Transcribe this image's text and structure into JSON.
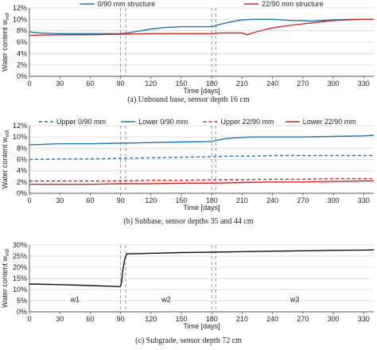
{
  "colors": {
    "blue": "#1f77b4",
    "red": "#d62728",
    "black": "#111111",
    "grid": "#d9d9d9",
    "marker": "#999999"
  },
  "chart_data": [
    {
      "type": "line",
      "caption": "(a) Unbound base, sensor depth 16 cm",
      "xlabel": "Time [days]",
      "ylabel": "Water content w",
      "ylabel_sub": "vol",
      "xlim": [
        0,
        340
      ],
      "ylim": [
        0,
        12
      ],
      "xticks": [
        0,
        30,
        60,
        90,
        120,
        150,
        180,
        210,
        240,
        270,
        300,
        330
      ],
      "yticks": [
        "0%",
        "2%",
        "4%",
        "6%",
        "8%",
        "10%",
        "12%"
      ],
      "ytick_values": [
        0,
        2,
        4,
        6,
        8,
        10,
        12
      ],
      "grid": "horizontal",
      "legend_position": "top",
      "markers": [
        90,
        95,
        180,
        184
      ],
      "annotations": [],
      "series": [
        {
          "name": "0/90 mm structure",
          "color": "blue",
          "dash": "solid",
          "x": [
            0,
            10,
            30,
            60,
            90,
            100,
            110,
            120,
            135,
            150,
            165,
            180,
            190,
            200,
            210,
            220,
            240,
            260,
            280,
            300,
            320,
            340
          ],
          "y": [
            7.8,
            7.6,
            7.5,
            7.5,
            7.5,
            7.7,
            8.0,
            8.3,
            8.6,
            8.7,
            8.7,
            8.7,
            9.2,
            9.6,
            9.9,
            10.0,
            10.0,
            9.8,
            9.7,
            9.9,
            10.0,
            10.0
          ]
        },
        {
          "name": "22/90 mm structure",
          "color": "red",
          "dash": "solid",
          "x": [
            0,
            30,
            60,
            90,
            120,
            150,
            180,
            190,
            200,
            210,
            215,
            220,
            230,
            240,
            255,
            270,
            285,
            300,
            315,
            330,
            340
          ],
          "y": [
            7.2,
            7.3,
            7.3,
            7.4,
            7.5,
            7.5,
            7.5,
            7.6,
            7.6,
            7.6,
            7.3,
            7.6,
            8.1,
            8.5,
            8.9,
            9.2,
            9.5,
            9.8,
            9.9,
            10.0,
            10.0
          ]
        }
      ]
    },
    {
      "type": "line",
      "caption": "(b) Subbase, sensor depths 35 and 44 cm",
      "xlabel": "Time [days]",
      "ylabel": "Water content w",
      "ylabel_sub": "vol",
      "xlim": [
        0,
        340
      ],
      "ylim": [
        0,
        12
      ],
      "xticks": [
        0,
        30,
        60,
        90,
        120,
        150,
        180,
        210,
        240,
        270,
        300,
        330
      ],
      "yticks": [
        "0%",
        "2%",
        "4%",
        "6%",
        "8%",
        "10%",
        "12%"
      ],
      "ytick_values": [
        0,
        2,
        4,
        6,
        8,
        10,
        12
      ],
      "grid": "horizontal",
      "legend_position": "top",
      "markers": [
        90,
        95,
        180,
        184
      ],
      "annotations": [],
      "series": [
        {
          "name": "Upper 0/90 mm",
          "color": "blue",
          "dash": "dashed",
          "x": [
            0,
            30,
            60,
            90,
            120,
            150,
            180,
            200,
            220,
            240,
            270,
            300,
            330,
            340
          ],
          "y": [
            6.0,
            6.1,
            6.1,
            6.2,
            6.3,
            6.4,
            6.5,
            6.6,
            6.6,
            6.7,
            6.7,
            6.7,
            6.7,
            6.7
          ]
        },
        {
          "name": "Lower 0/90 mm",
          "color": "blue",
          "dash": "solid",
          "x": [
            0,
            30,
            60,
            90,
            120,
            150,
            180,
            190,
            200,
            220,
            240,
            270,
            300,
            330,
            340
          ],
          "y": [
            8.6,
            8.8,
            8.8,
            8.9,
            9.0,
            9.1,
            9.2,
            9.6,
            9.8,
            10.0,
            10.0,
            10.0,
            10.1,
            10.2,
            10.3
          ]
        },
        {
          "name": "Upper 22/90 mm",
          "color": "red",
          "dash": "dashed",
          "x": [
            0,
            30,
            60,
            90,
            120,
            150,
            180,
            210,
            240,
            270,
            300,
            330,
            340
          ],
          "y": [
            2.2,
            2.2,
            2.2,
            2.2,
            2.3,
            2.3,
            2.4,
            2.4,
            2.5,
            2.5,
            2.6,
            2.6,
            2.6
          ]
        },
        {
          "name": "Lower 22/90 mm",
          "color": "red",
          "dash": "solid",
          "x": [
            0,
            30,
            60,
            90,
            120,
            150,
            180,
            210,
            240,
            270,
            300,
            330,
            340
          ],
          "y": [
            1.6,
            1.6,
            1.6,
            1.7,
            1.7,
            1.8,
            1.8,
            1.9,
            2.0,
            2.0,
            2.1,
            2.2,
            2.2
          ]
        }
      ]
    },
    {
      "type": "line",
      "caption": "(c) Subgrade, sensor depth 72 cm",
      "xlabel": "Time [days]",
      "ylabel": "Water content w",
      "ylabel_sub": "vol",
      "xlim": [
        0,
        340
      ],
      "ylim": [
        0,
        30
      ],
      "xticks": [
        0,
        30,
        60,
        90,
        120,
        150,
        180,
        210,
        240,
        270,
        300,
        330
      ],
      "yticks": [
        "0%",
        "5%",
        "10%",
        "15%",
        "20%",
        "25%",
        "30%"
      ],
      "ytick_values": [
        0,
        5,
        10,
        15,
        20,
        25,
        30
      ],
      "grid": "horizontal",
      "legend_position": "none",
      "markers": [
        90,
        95,
        180,
        184
      ],
      "annotations": [
        {
          "text": "w1",
          "x": 45,
          "y": 4.5
        },
        {
          "text": "w2",
          "x": 135,
          "y": 4.5
        },
        {
          "text": "w3",
          "x": 262,
          "y": 4.5
        }
      ],
      "series": [
        {
          "name": "",
          "color": "black",
          "dash": "solid",
          "x": [
            0,
            30,
            60,
            85,
            88,
            90,
            91,
            92,
            94,
            96,
            120,
            150,
            180,
            210,
            240,
            270,
            300,
            330,
            340
          ],
          "y": [
            12.5,
            12.2,
            11.8,
            11.4,
            11.3,
            11.5,
            13.5,
            18.0,
            23.5,
            26.0,
            26.3,
            26.6,
            26.8,
            27.0,
            27.2,
            27.4,
            27.6,
            27.7,
            27.8
          ]
        }
      ]
    }
  ]
}
